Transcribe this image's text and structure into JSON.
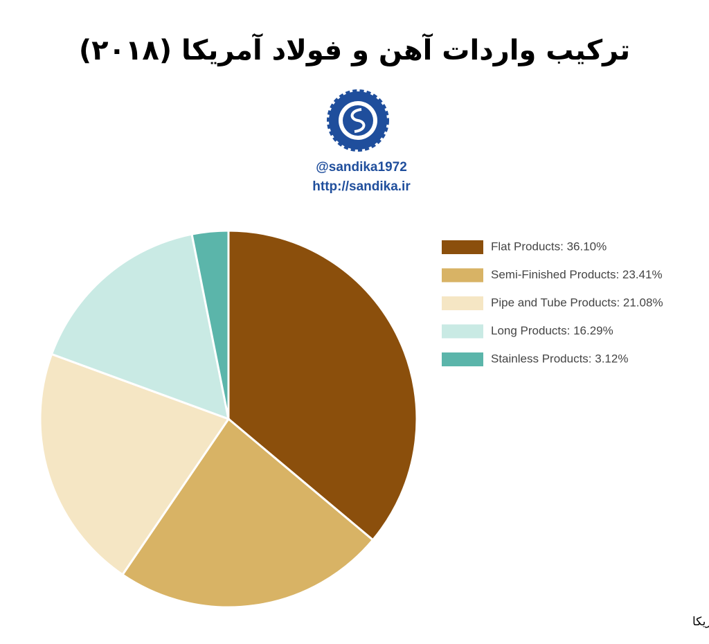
{
  "chart_data": {
    "type": "pie",
    "title": "ترکیب واردات آهن و فولاد آمریکا (۲۰۱۸)",
    "handle": "@sandika1972",
    "website": "http://sandika.ir",
    "source": "منبع: گمرک آمریکا",
    "categories": [
      "Flat Products: 36.10%",
      "Semi-Finished Products: 23.41%",
      "Pipe and Tube Products: 21.08%",
      "Long Products: 16.29%",
      "Stainless Products: 3.12%"
    ],
    "values": [
      36.1,
      23.41,
      21.08,
      16.29,
      3.12
    ],
    "colors": [
      "#8b4f0c",
      "#d8b365",
      "#f5e6c4",
      "#c9eae4",
      "#5bb5aa"
    ],
    "legend": "right"
  }
}
